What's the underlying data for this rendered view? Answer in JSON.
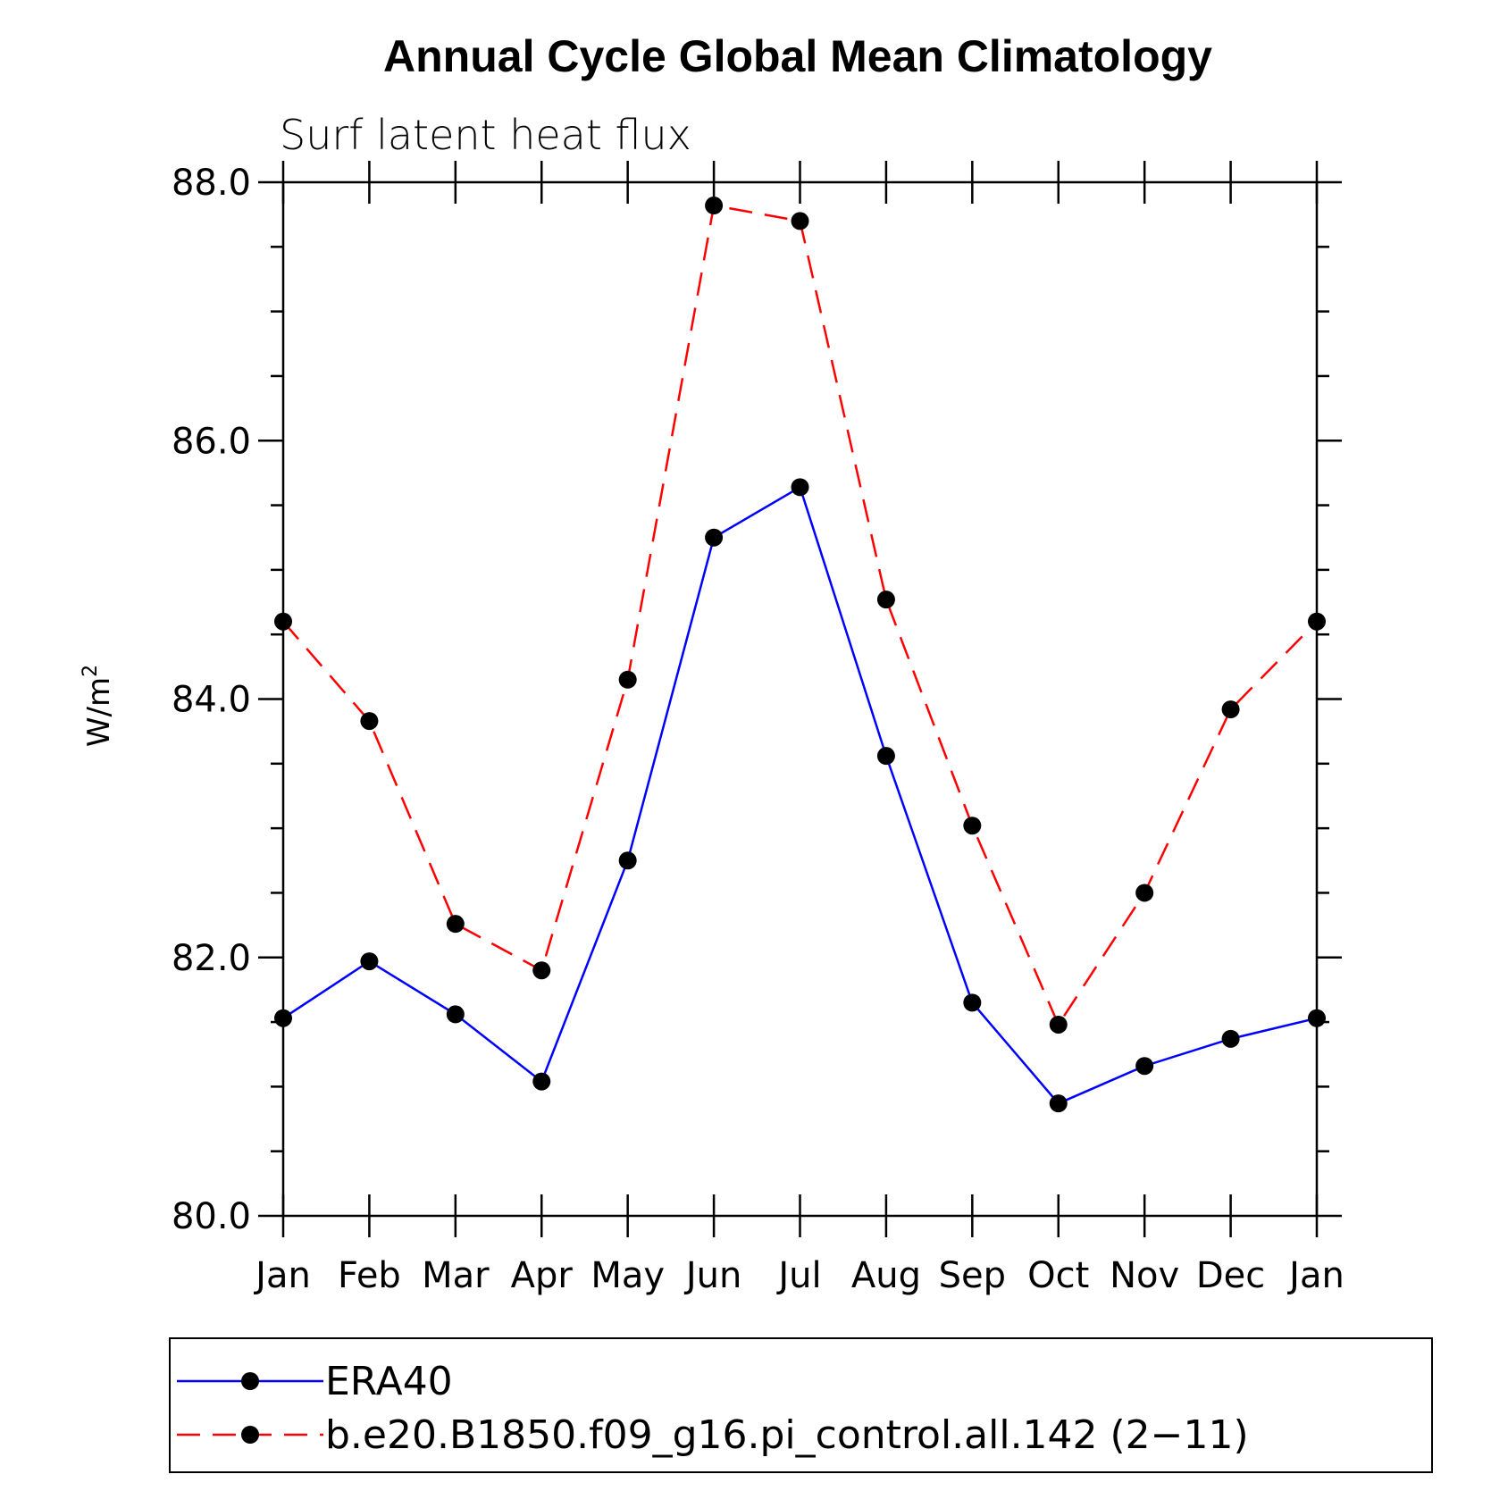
{
  "chart_data": {
    "type": "line",
    "title": "Annual Cycle Global Mean Climatology",
    "subtitle": "Surf latent heat flux",
    "ylabel": "W/m",
    "ylabel_sup": "2",
    "xlabel": "",
    "categories": [
      "Jan",
      "Feb",
      "Mar",
      "Apr",
      "May",
      "Jun",
      "Jul",
      "Aug",
      "Sep",
      "Oct",
      "Nov",
      "Dec",
      "Jan"
    ],
    "ylim": [
      80.0,
      88.0
    ],
    "yticks": [
      "80.0",
      "82.0",
      "84.0",
      "86.0",
      "88.0"
    ],
    "grid": false,
    "legend_position": "bottom",
    "series": [
      {
        "name": "ERA40",
        "color": "#0000ff",
        "line_style": "solid",
        "marker": "filled-circle",
        "values": [
          81.53,
          81.97,
          81.56,
          81.04,
          82.75,
          85.25,
          85.64,
          83.56,
          81.65,
          80.87,
          81.16,
          81.37,
          81.53
        ]
      },
      {
        "name": "b.e20.B1850.f09_g16.pi_control.all.142 (2−11)",
        "color": "#ff0000",
        "line_style": "dashed",
        "marker": "filled-circle",
        "values": [
          84.6,
          83.83,
          82.26,
          81.9,
          84.15,
          87.82,
          87.7,
          84.77,
          83.02,
          81.48,
          82.5,
          83.92,
          84.6
        ]
      }
    ]
  }
}
